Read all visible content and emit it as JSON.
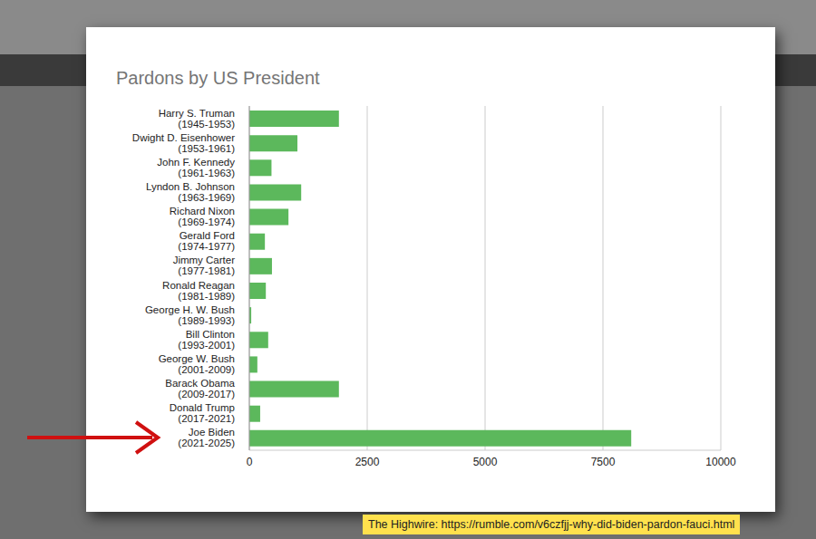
{
  "chart_data": {
    "type": "bar",
    "title": "Pardons by US President",
    "orientation": "horizontal",
    "categories": [
      "Harry S. Truman\n(1945-1953)",
      "Dwight D. Eisenhower\n(1953-1961)",
      "John F. Kennedy\n(1961-1963)",
      "Lyndon B. Johnson\n(1963-1969)",
      "Richard Nixon\n(1969-1974)",
      "Gerald Ford\n(1974-1977)",
      "Jimmy Carter\n(1977-1981)",
      "Ronald Reagan\n(1981-1989)",
      "George H. W. Bush\n(1989-1993)",
      "Bill Clinton\n(1993-2001)",
      "George W. Bush\n(2001-2009)",
      "Barack Obama\n(2009-2017)",
      "Donald Trump\n(2017-2021)",
      "Joe Biden\n(2021-2025)"
    ],
    "values": [
      1900,
      1020,
      470,
      1100,
      830,
      330,
      480,
      350,
      40,
      400,
      170,
      1900,
      230,
      8100
    ],
    "color": "#5cb85c",
    "xlim": [
      0,
      10000
    ],
    "xticks": [
      0,
      2500,
      5000,
      7500,
      10000
    ],
    "grid": true,
    "annotations": [
      "The Highwire: https://rumble.com/v6czfjj-why-did-biden-pardon-fauci.html"
    ]
  }
}
